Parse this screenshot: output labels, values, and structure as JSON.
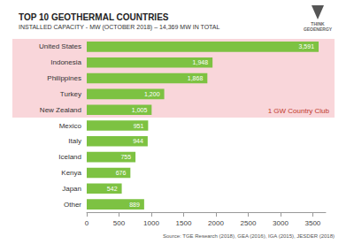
{
  "chart_data": {
    "type": "bar",
    "orientation": "horizontal",
    "title": "TOP 10 GEOTHERMAL COUNTRIES",
    "subtitle": "INSTALLED CAPACITY - MW (OCTOBER 2018) – 14,369 MW IN TOTAL",
    "categories": [
      "United States",
      "Indonesia",
      "Philippines",
      "Turkey",
      "New Zealand",
      "Mexico",
      "Italy",
      "Iceland",
      "Kenya",
      "Japan",
      "Other"
    ],
    "values": [
      3591,
      1948,
      1868,
      1200,
      1005,
      951,
      944,
      755,
      676,
      542,
      889
    ],
    "value_labels": [
      "3,591",
      "1,948",
      "1,868",
      "1,200",
      "1,005",
      "951",
      "944",
      "755",
      "676",
      "542",
      "889"
    ],
    "data_labels": true,
    "color": "#7dc242",
    "xlim": [
      0,
      3700
    ],
    "xticks": [
      0,
      500,
      1000,
      1500,
      2000,
      2500,
      3000,
      3500
    ],
    "grid": false,
    "annotations": [
      {
        "text": "1 GW Country Club",
        "categories": [
          "United States",
          "New Zealand"
        ],
        "color": "#f9d6da"
      },
      {
        "text": "THINK\nGEOENERGY"
      }
    ],
    "source": "Source: TGE Research (2018), GEA (2016), IGA (2015), JESDER (2018)"
  }
}
